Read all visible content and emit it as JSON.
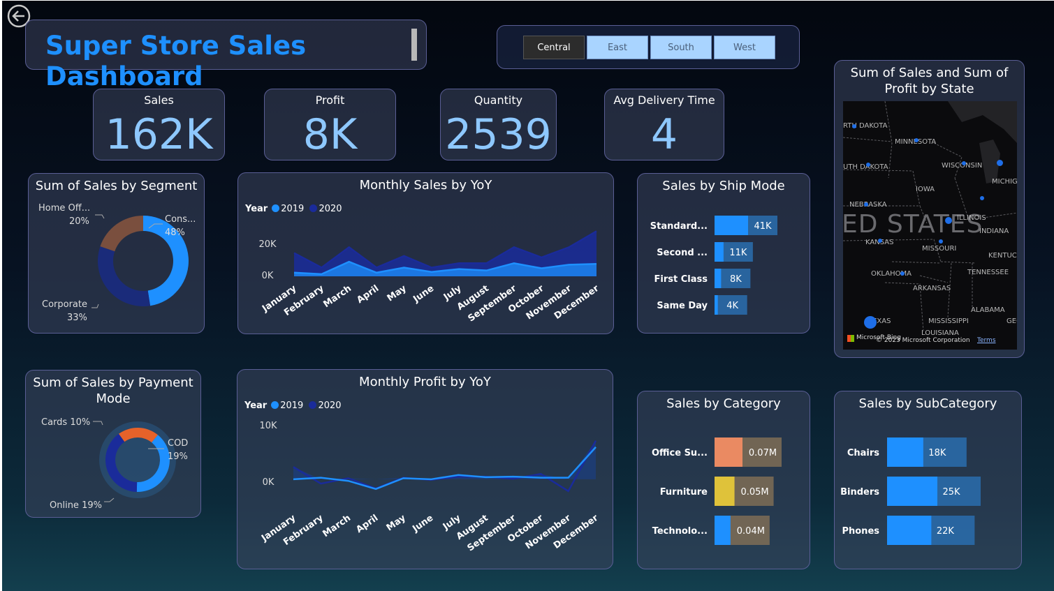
{
  "header": {
    "title": "Super Store Sales Dashboard",
    "back_icon": "back-arrow-icon"
  },
  "region_slicer": {
    "options": [
      "Central",
      "East",
      "South",
      "West"
    ],
    "selected": "Central"
  },
  "kpis": {
    "sales": {
      "label": "Sales",
      "value": "162K"
    },
    "profit": {
      "label": "Profit",
      "value": "8K"
    },
    "quantity": {
      "label": "Quantity",
      "value": "2539"
    },
    "delivery": {
      "label": "Avg Delivery Time",
      "value": "4"
    }
  },
  "colors": {
    "accent": "#1e90ff",
    "dark_blue": "#1a2b9a",
    "brown": "#7a4f3e",
    "orange": "#e6622a",
    "peach": "#ea8a62",
    "yellow": "#dfc23a",
    "kpi_value": "#8ec8ff"
  },
  "chart_data": [
    {
      "id": "segment",
      "type": "pie",
      "title": "Sum of Sales by Segment",
      "slices": [
        {
          "label": "Cons...",
          "pct_label": "48%",
          "value": 48
        },
        {
          "label": "Corporate",
          "pct_label": "33%",
          "value": 33
        },
        {
          "label": "Home Off...",
          "pct_label": "20%",
          "value": 20
        }
      ],
      "colors": [
        "#1e90ff",
        "#1a2b7a",
        "#7a4f3e"
      ]
    },
    {
      "id": "monthly_sales",
      "type": "area",
      "title": "Monthly Sales by YoY",
      "legend_title": "Year",
      "categories": [
        "January",
        "February",
        "March",
        "April",
        "May",
        "June",
        "July",
        "August",
        "September",
        "October",
        "November",
        "December"
      ],
      "series": [
        {
          "name": "2019",
          "values": [
            2500,
            1500,
            10000,
            2500,
            6000,
            3000,
            5000,
            4000,
            9000,
            5500,
            8000,
            8500
          ],
          "color": "#1e90ff"
        },
        {
          "name": "2020",
          "values": [
            16000,
            6000,
            20000,
            6000,
            14000,
            6000,
            9000,
            9000,
            20000,
            13000,
            20000,
            31000
          ],
          "color": "#1a2b9a"
        }
      ],
      "yticks": [
        "20K",
        "0K"
      ],
      "ylim": [
        0,
        35000
      ]
    },
    {
      "id": "ship_mode",
      "type": "bar",
      "title": "Sales by Ship Mode",
      "categories": [
        "Standard...",
        "Second ...",
        "First Class",
        "Same Day"
      ],
      "values": [
        41,
        11,
        8,
        4
      ],
      "data_labels": [
        "41K",
        "11K",
        "8K",
        "4K"
      ]
    },
    {
      "id": "payment",
      "type": "pie",
      "title": "Sum of Sales by Payment Mode",
      "slices": [
        {
          "label": "Cards",
          "pct_label": "10%",
          "value": 10
        },
        {
          "label": "COD",
          "pct_label": "19%",
          "value": 19
        },
        {
          "label": "Online",
          "pct_label": "19%",
          "value": 19
        }
      ],
      "colors": [
        "#e6622a",
        "#1e90ff",
        "#1a2b9a"
      ]
    },
    {
      "id": "monthly_profit",
      "type": "line",
      "title": "Monthly Profit by YoY",
      "legend_title": "Year",
      "categories": [
        "January",
        "February",
        "March",
        "April",
        "May",
        "June",
        "July",
        "August",
        "September",
        "October",
        "November",
        "December"
      ],
      "series": [
        {
          "name": "2019",
          "values": [
            0,
            300,
            -300,
            -1800,
            200,
            0,
            800,
            400,
            500,
            300,
            300,
            6000
          ],
          "color": "#1e90ff"
        },
        {
          "name": "2020",
          "values": [
            2300,
            -800,
            200,
            -1700,
            300,
            -100,
            500,
            500,
            100,
            1000,
            -2200,
            7200
          ],
          "color": "#1a2b9a"
        }
      ],
      "yticks": [
        "10K",
        "0K"
      ],
      "ylim": [
        -3000,
        10000
      ]
    },
    {
      "id": "category",
      "type": "bar",
      "title": "Sales by Category",
      "categories": [
        "Office Su...",
        "Furniture",
        "Technolo..."
      ],
      "values": [
        0.07,
        0.05,
        0.04
      ],
      "data_labels": [
        "0.07M",
        "0.05M",
        "0.04M"
      ],
      "colors": [
        "#ea8a62",
        "#dfc23a",
        "#1e90ff"
      ]
    },
    {
      "id": "subcategory",
      "type": "bar",
      "title": "Sales by SubCategory",
      "categories": [
        "Chairs",
        "Binders",
        "Phones"
      ],
      "values": [
        18,
        25,
        22
      ],
      "data_labels": [
        "18K",
        "25K",
        "22K"
      ]
    }
  ],
  "map": {
    "title": "Sum of Sales and Sum of Profit by State",
    "country_label": "ED STATES",
    "state_labels": [
      "RTH DAKOTA",
      "MINNESOTA",
      "UTH DAKOTA",
      "WISCONSIN",
      "MICHIG",
      "IOWA",
      "NEBRASKA",
      "ILLINOIS",
      "INDIANA",
      "KANSAS",
      "MISSOURI",
      "KENTUCK",
      "OKLAHOMA",
      "TENNESSEE",
      "ARKANSAS",
      "ALABAMA",
      "MISSISSIPPI",
      "GEC",
      "TEXAS",
      "LOUISIANA"
    ],
    "copyright": "© 2023 Microsoft Corporation",
    "terms": "Terms",
    "bing_label": "Microsoft Bing"
  }
}
